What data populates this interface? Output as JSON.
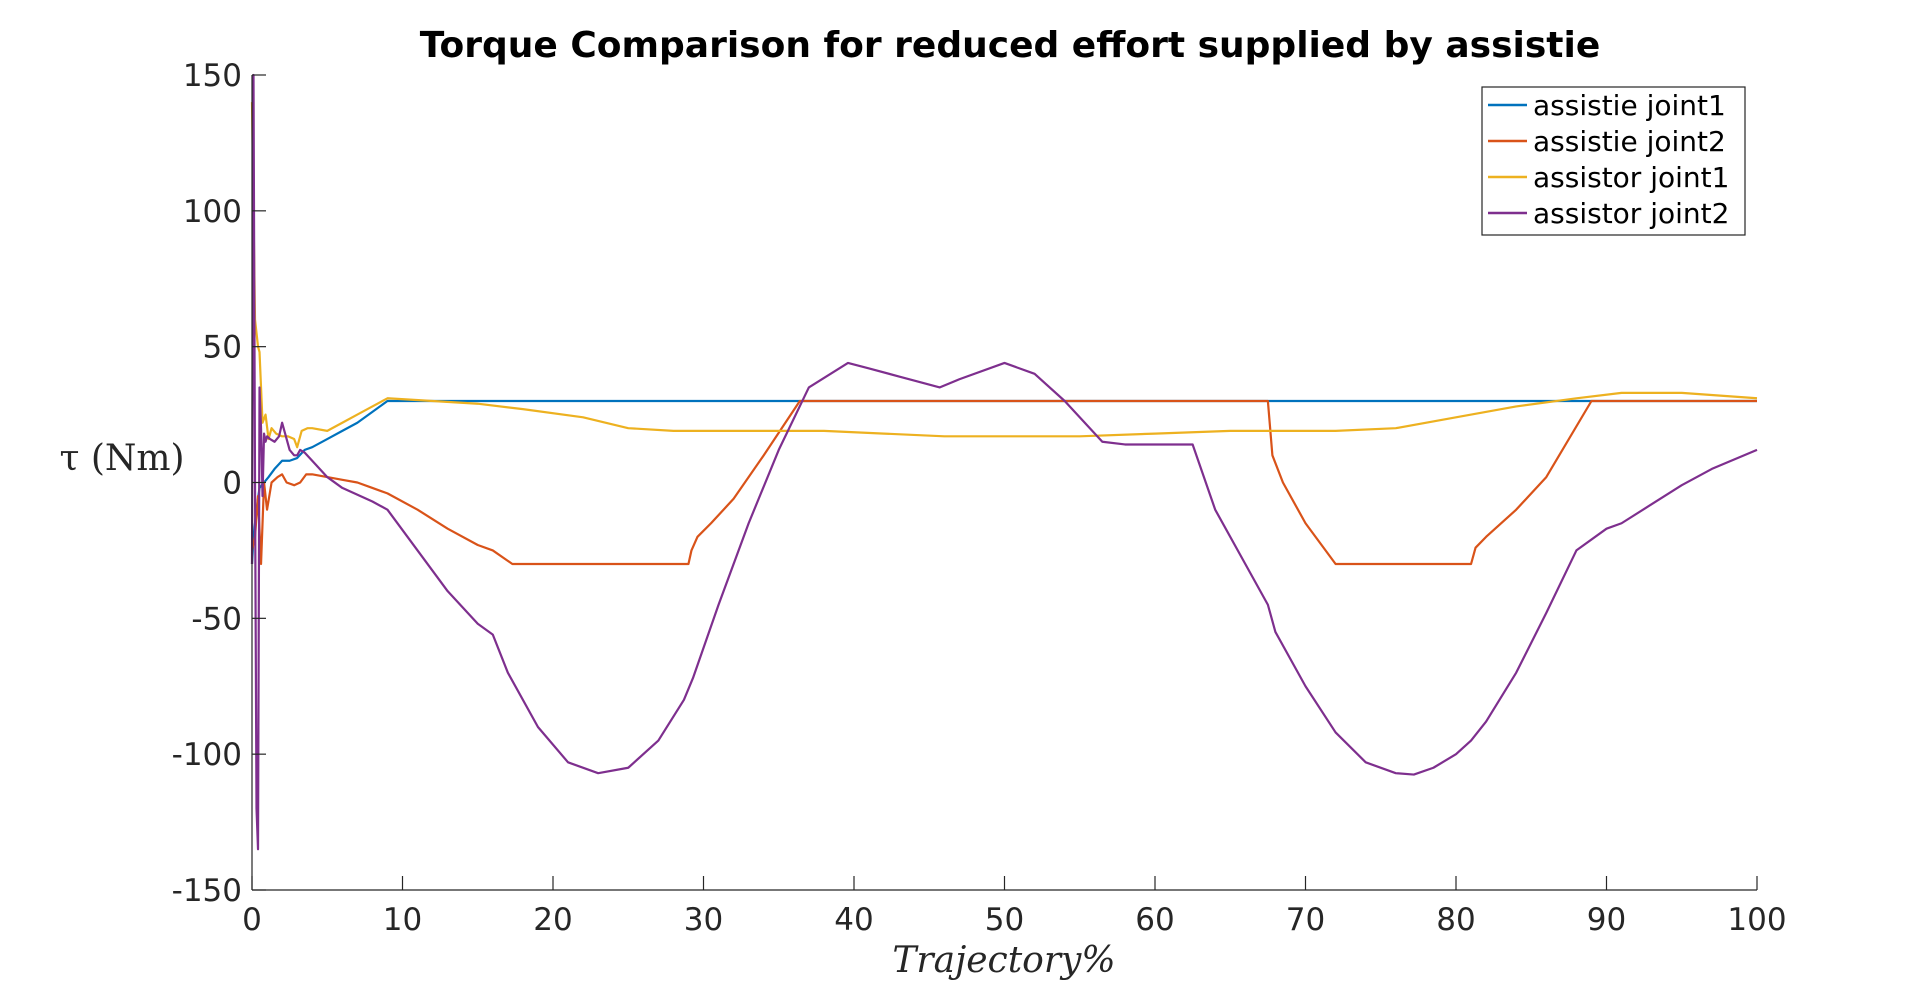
{
  "chart_data": {
    "type": "line",
    "title": "Torque Comparison for reduced effort supplied by assistie",
    "xlabel": "Trajectory%",
    "ylabel": "τ (Nm)",
    "xlim": [
      0,
      100
    ],
    "ylim": [
      -150,
      150
    ],
    "xticks": [
      "0",
      "10",
      "20",
      "30",
      "40",
      "50",
      "60",
      "70",
      "80",
      "90",
      "100"
    ],
    "yticks": [
      "150",
      "100",
      "50",
      "0",
      "-50",
      "-100",
      "-150"
    ],
    "grid": false,
    "legend_position": "top-right",
    "series": [
      {
        "name": "assistie joint1",
        "color": "#0072BD",
        "x": [
          0,
          0.1,
          0.3,
          0.5,
          0.8,
          1.1,
          1.5,
          2,
          2.5,
          3,
          3.5,
          4,
          5,
          6,
          7,
          8,
          9,
          100
        ],
        "y": [
          -30,
          -20,
          -10,
          -2,
          0,
          2,
          5,
          8,
          8,
          9,
          12,
          13,
          16,
          19,
          22,
          26,
          30,
          30
        ]
      },
      {
        "name": "assistie joint2",
        "color": "#D95319",
        "x": [
          0,
          0.2,
          0.4,
          0.6,
          0.8,
          1.0,
          1.3,
          1.7,
          2.0,
          2.3,
          2.8,
          3.2,
          3.6,
          4.0,
          5,
          6,
          7,
          8,
          9,
          11,
          13,
          15,
          16,
          17.3,
          29,
          29.2,
          29.6,
          30.5,
          32,
          34,
          36.4,
          67.5,
          67.8,
          68.5,
          70,
          72,
          81,
          81.3,
          82,
          84,
          86,
          89,
          100
        ],
        "y": [
          -25,
          -20,
          -5,
          -30,
          0,
          -10,
          0,
          2,
          3,
          0,
          -1,
          0,
          3,
          3,
          2,
          1,
          0,
          -2,
          -4,
          -10,
          -17,
          -23,
          -25,
          -30,
          -30,
          -25,
          -20,
          -15,
          -6,
          10,
          30,
          30,
          10,
          0,
          -15,
          -30,
          -30,
          -24,
          -20,
          -10,
          2,
          30,
          30
        ]
      },
      {
        "name": "assistor joint1",
        "color": "#EDB120",
        "x": [
          0,
          0.2,
          0.4,
          0.5,
          0.7,
          0.9,
          1.1,
          1.3,
          1.6,
          2.0,
          2.4,
          2.8,
          3.0,
          3.3,
          3.7,
          4.0,
          5,
          6,
          7,
          8,
          9,
          12,
          15,
          18,
          22,
          25,
          28,
          31,
          35,
          38,
          42,
          46,
          50,
          55,
          60,
          65,
          68,
          72,
          76,
          80,
          84,
          88,
          91,
          95,
          100
        ],
        "y": [
          140,
          60,
          50,
          48,
          22,
          25,
          16,
          20,
          18,
          17,
          17,
          16,
          13,
          19,
          20,
          20,
          19,
          22,
          25,
          28,
          31,
          30,
          29,
          27,
          24,
          20,
          19,
          19,
          19,
          19,
          18,
          17,
          17,
          17,
          18,
          19,
          19,
          19,
          20,
          24,
          28,
          31,
          33,
          33,
          31
        ]
      },
      {
        "name": "assistor joint2",
        "color": "#7E2F8E",
        "x": [
          0,
          0.1,
          0.2,
          0.3,
          0.4,
          0.5,
          0.6,
          0.7,
          0.8,
          0.9,
          1.0,
          1.2,
          1.5,
          1.8,
          2.0,
          2.2,
          2.5,
          2.8,
          3.0,
          3.2,
          3.5,
          4.0,
          5,
          6,
          8,
          9,
          11,
          13,
          15,
          16,
          17,
          19,
          21,
          23,
          25,
          27,
          28.7,
          29.3,
          31,
          33,
          35,
          37,
          39.6,
          41,
          43,
          45.7,
          47,
          50,
          52,
          54,
          56.5,
          58,
          60,
          61.5,
          62.5,
          64,
          66,
          67.5,
          68,
          70,
          72,
          74,
          76,
          77.2,
          78.5,
          80,
          81,
          82,
          84,
          86,
          88,
          90,
          91,
          93,
          95,
          97,
          100
        ],
        "y": [
          -30,
          150,
          0,
          -120,
          -135,
          35,
          20,
          -5,
          18,
          15,
          17,
          16,
          15,
          17,
          22,
          18,
          12,
          10,
          10,
          12,
          11,
          8,
          2,
          -2,
          -7,
          -10,
          -25,
          -40,
          -52,
          -56,
          -70,
          -90,
          -103,
          -107,
          -105,
          -95,
          -80,
          -72,
          -45,
          -15,
          12,
          35,
          44,
          42,
          39,
          35,
          38,
          44,
          40,
          30,
          15,
          14,
          14,
          14,
          14,
          -10,
          -30,
          -45,
          -55,
          -75,
          -92,
          -103,
          -107,
          -107.5,
          -105,
          -100,
          -95,
          -88,
          -70,
          -48,
          -25,
          -17,
          -15,
          -8,
          -1,
          5,
          12
        ]
      }
    ]
  }
}
